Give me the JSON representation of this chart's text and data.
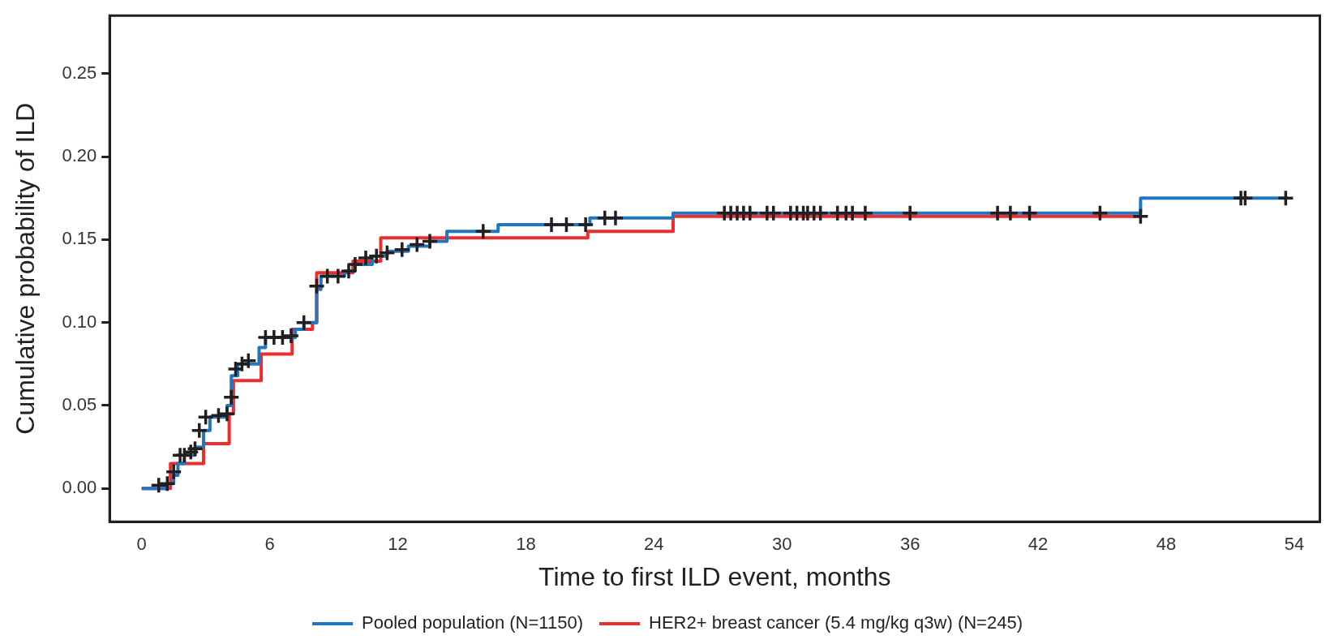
{
  "chart_data": {
    "type": "step",
    "xlabel": "Time to first ILD event, months",
    "ylabel": "Cumulative probability of ILD",
    "xlim": [
      -1.5,
      55.2
    ],
    "ylim": [
      -0.02,
      0.285
    ],
    "xticks": [
      0,
      6,
      12,
      18,
      24,
      30,
      36,
      42,
      48,
      54
    ],
    "yticks": [
      {
        "value": 0,
        "label": "0.00"
      },
      {
        "value": 0.05,
        "label": "0.05"
      },
      {
        "value": 0.1,
        "label": "0.10"
      },
      {
        "value": 0.15,
        "label": "0.15"
      },
      {
        "value": 0.2,
        "label": "0.20"
      },
      {
        "value": 0.25,
        "label": "0.25"
      }
    ],
    "grid": false,
    "legend": "bottom",
    "line_style": "solid",
    "series": [
      {
        "name": "Pooled population (N=1150)",
        "color": "#1f77c4",
        "marker": "none",
        "x": [
          0,
          1.2,
          1.5,
          1.7,
          2.0,
          2.5,
          2.9,
          3.2,
          4.0,
          4.2,
          4.5,
          5.5,
          5.8,
          7.2,
          7.6,
          8.2,
          8.4,
          9.5,
          10.0,
          10.8,
          11.5,
          12.5,
          13.5,
          14.3,
          16.7,
          21.0,
          24.9,
          46.8,
          53.7
        ],
        "values": [
          0,
          0.003,
          0.008,
          0.015,
          0.02,
          0.025,
          0.035,
          0.043,
          0.05,
          0.068,
          0.075,
          0.085,
          0.091,
          0.096,
          0.1,
          0.12,
          0.128,
          0.131,
          0.135,
          0.14,
          0.143,
          0.146,
          0.149,
          0.155,
          0.159,
          0.163,
          0.166,
          0.175,
          0.175
        ]
      },
      {
        "name": "HER2+ breast cancer (5.4 mg/kg q3w) (N=245)",
        "color": "#ee2d2d",
        "marker": "none",
        "x": [
          0,
          1.35,
          2.9,
          4.1,
          4.3,
          5.6,
          7.05,
          8.0,
          8.2,
          9.9,
          11.2,
          20.9,
          24.9,
          46.8
        ],
        "values": [
          0,
          0.015,
          0.027,
          0.045,
          0.065,
          0.081,
          0.096,
          0.1,
          0.13,
          0.137,
          0.151,
          0.155,
          0.164,
          0.164
        ]
      },
      {
        "type": "scatter",
        "color": "#231f20",
        "marker": "cross",
        "x": [
          0.8,
          1.2,
          1.5,
          1.8,
          2.0,
          2.3,
          2.5,
          2.7,
          3.0,
          3.6,
          4.0,
          4.2,
          4.4,
          4.7,
          5.0,
          5.8,
          6.2,
          6.6,
          7.0,
          7.6,
          8.2,
          8.7,
          9.2,
          9.7,
          10.0,
          10.5,
          11.0,
          11.5,
          12.2,
          12.9,
          13.5,
          16.0,
          19.2,
          19.9,
          20.8,
          21.7,
          22.2,
          27.3,
          27.6,
          27.9,
          28.2,
          28.5,
          29.3,
          29.6,
          30.4,
          30.7,
          31.0,
          31.2,
          31.5,
          31.8,
          32.6,
          33.0,
          33.3,
          33.9,
          36.0,
          40.1,
          40.7,
          41.6,
          44.9,
          46.8,
          51.5,
          51.7,
          53.6
        ],
        "values": [
          0.002,
          0.003,
          0.01,
          0.02,
          0.02,
          0.022,
          0.024,
          0.035,
          0.043,
          0.044,
          0.045,
          0.055,
          0.072,
          0.075,
          0.077,
          0.091,
          0.091,
          0.091,
          0.092,
          0.1,
          0.122,
          0.128,
          0.128,
          0.131,
          0.135,
          0.139,
          0.14,
          0.142,
          0.144,
          0.147,
          0.149,
          0.155,
          0.159,
          0.159,
          0.159,
          0.163,
          0.163,
          0.166,
          0.166,
          0.166,
          0.166,
          0.166,
          0.166,
          0.166,
          0.166,
          0.166,
          0.166,
          0.166,
          0.166,
          0.166,
          0.166,
          0.166,
          0.166,
          0.166,
          0.166,
          0.166,
          0.166,
          0.166,
          0.166,
          0.164,
          0.175,
          0.175,
          0.175
        ]
      }
    ]
  }
}
